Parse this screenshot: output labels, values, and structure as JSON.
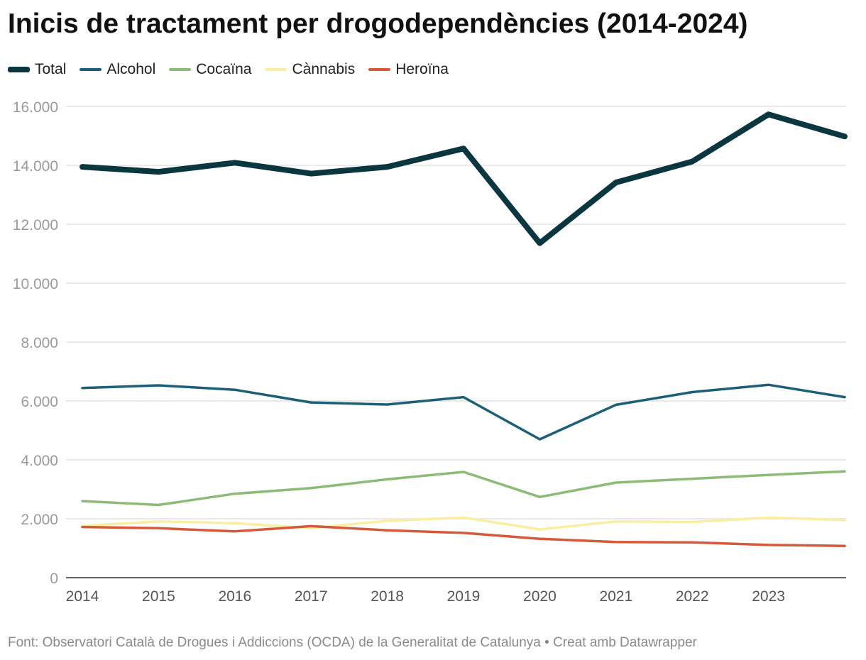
{
  "chart_data": {
    "type": "line",
    "title": "Inicis de tractament per drogodependències (2014-2024)",
    "xlabel": "",
    "ylabel": "",
    "x": [
      2014,
      2015,
      2016,
      2017,
      2018,
      2019,
      2020,
      2021,
      2022,
      2023,
      2024
    ],
    "x_tick_labels": [
      "2014",
      "2015",
      "2016",
      "2017",
      "2018",
      "2019",
      "2020",
      "2021",
      "2022",
      "2023"
    ],
    "xlim": [
      2014,
      2024
    ],
    "ylim": [
      0,
      16000
    ],
    "y_ticks": [
      0,
      2000,
      4000,
      6000,
      8000,
      10000,
      12000,
      14000,
      16000
    ],
    "y_tick_labels": [
      "0",
      "2.000",
      "4.000",
      "6.000",
      "8.000",
      "10.000",
      "12.000",
      "14.000",
      "16.000"
    ],
    "grid": "horizontal",
    "legend_position": "top-left",
    "series": [
      {
        "name": "Total",
        "color": "#0a3640",
        "values": [
          13950,
          13780,
          14090,
          13720,
          13950,
          14570,
          11360,
          13420,
          14130,
          15730,
          14980
        ]
      },
      {
        "name": "Alcohol",
        "color": "#1b6078",
        "values": [
          6440,
          6530,
          6380,
          5950,
          5880,
          6130,
          4700,
          5870,
          6300,
          6550,
          6130
        ]
      },
      {
        "name": "Cocaïna",
        "color": "#8bbb74",
        "values": [
          2600,
          2470,
          2850,
          3040,
          3340,
          3590,
          2740,
          3230,
          3360,
          3490,
          3610
        ]
      },
      {
        "name": "Cànnabis",
        "color": "#fbeea0",
        "values": [
          1760,
          1910,
          1850,
          1680,
          1930,
          2040,
          1640,
          1910,
          1890,
          2040,
          1960
        ]
      },
      {
        "name": "Heroïna",
        "color": "#d55a3c",
        "values": [
          1720,
          1680,
          1570,
          1750,
          1610,
          1520,
          1320,
          1210,
          1200,
          1110,
          1080
        ]
      }
    ]
  },
  "footer": {
    "text": "Font: Observatori Català de Drogues i Addiccions (OCDA) de la Generalitat de Catalunya • Creat amb Datawrapper"
  }
}
